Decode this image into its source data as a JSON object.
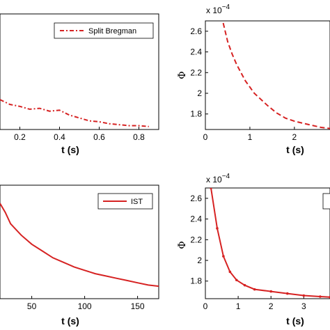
{
  "chart_data": [
    {
      "type": "line",
      "position": "top-left",
      "xlabel": "t (s)",
      "ylabel": "",
      "x_ticks": [
        "0.2",
        "0.4",
        "0.6",
        "0.8"
      ],
      "xlim": [
        0.1,
        0.9
      ],
      "legend": {
        "placement": "top-right",
        "entries": [
          "Split Bregman"
        ]
      },
      "series": [
        {
          "name": "Split Bregman",
          "style": "dash-dot",
          "color": "#d62222",
          "x": [
            0.1,
            0.15,
            0.2,
            0.25,
            0.3,
            0.35,
            0.4,
            0.45,
            0.5,
            0.55,
            0.6,
            0.65,
            0.7,
            0.75,
            0.8,
            0.85
          ],
          "y": [
            0.155,
            0.13,
            0.12,
            0.105,
            0.11,
            0.095,
            0.1,
            0.075,
            0.06,
            0.045,
            0.04,
            0.03,
            0.025,
            0.02,
            0.02,
            0.015
          ]
        }
      ]
    },
    {
      "type": "line",
      "position": "top-right",
      "xlabel": "t (s)",
      "ylabel": "Φ",
      "multiplier": "x 10",
      "multiplier_exp": "−4",
      "x_ticks": [
        "0",
        "1",
        "2"
      ],
      "y_ticks": [
        "1.8",
        "2",
        "2.2",
        "2.4",
        "2.6"
      ],
      "xlim": [
        0,
        2.8
      ],
      "ylim": [
        1.65,
        2.7
      ],
      "series": [
        {
          "name": "",
          "style": "dashed",
          "color": "#d62222",
          "x": [
            0.4,
            0.5,
            0.6,
            0.7,
            0.8,
            0.9,
            1.0,
            1.1,
            1.2,
            1.4,
            1.6,
            1.8,
            2.0,
            2.2,
            2.4,
            2.6,
            2.8
          ],
          "y": [
            2.68,
            2.5,
            2.38,
            2.28,
            2.2,
            2.12,
            2.06,
            2.0,
            1.96,
            1.88,
            1.81,
            1.76,
            1.73,
            1.71,
            1.69,
            1.67,
            1.66
          ]
        }
      ]
    },
    {
      "type": "line",
      "position": "bottom-left",
      "xlabel": "t (s)",
      "ylabel": "",
      "x_ticks": [
        "50",
        "100",
        "150"
      ],
      "xlim": [
        20,
        170
      ],
      "legend": {
        "placement": "top-right",
        "entries": [
          "IST"
        ]
      },
      "series": [
        {
          "name": "IST",
          "style": "solid",
          "color": "#d62222",
          "x": [
            20,
            25,
            30,
            40,
            50,
            60,
            70,
            80,
            90,
            100,
            110,
            120,
            130,
            140,
            150,
            160,
            170
          ],
          "y": [
            0.42,
            0.38,
            0.33,
            0.28,
            0.24,
            0.21,
            0.18,
            0.16,
            0.14,
            0.125,
            0.11,
            0.1,
            0.09,
            0.08,
            0.07,
            0.06,
            0.055
          ]
        }
      ]
    },
    {
      "type": "line",
      "position": "bottom-right",
      "xlabel": "t (s)",
      "ylabel": "Φ",
      "multiplier": "x 10",
      "multiplier_exp": "−4",
      "x_ticks": [
        "0",
        "1",
        "2",
        "3"
      ],
      "y_ticks": [
        "1.8",
        "2",
        "2.2",
        "2.4",
        "2.6"
      ],
      "xlim": [
        0,
        3.8
      ],
      "ylim": [
        1.63,
        2.7
      ],
      "series": [
        {
          "name": "",
          "style": "solid-markers",
          "color": "#d62222",
          "x": [
            0.17,
            0.36,
            0.55,
            0.75,
            0.95,
            1.2,
            1.5,
            2.0,
            2.5,
            3.0,
            3.5,
            3.8
          ],
          "y": [
            2.7,
            2.31,
            2.04,
            1.89,
            1.81,
            1.76,
            1.72,
            1.7,
            1.68,
            1.66,
            1.65,
            1.645
          ]
        }
      ]
    }
  ]
}
